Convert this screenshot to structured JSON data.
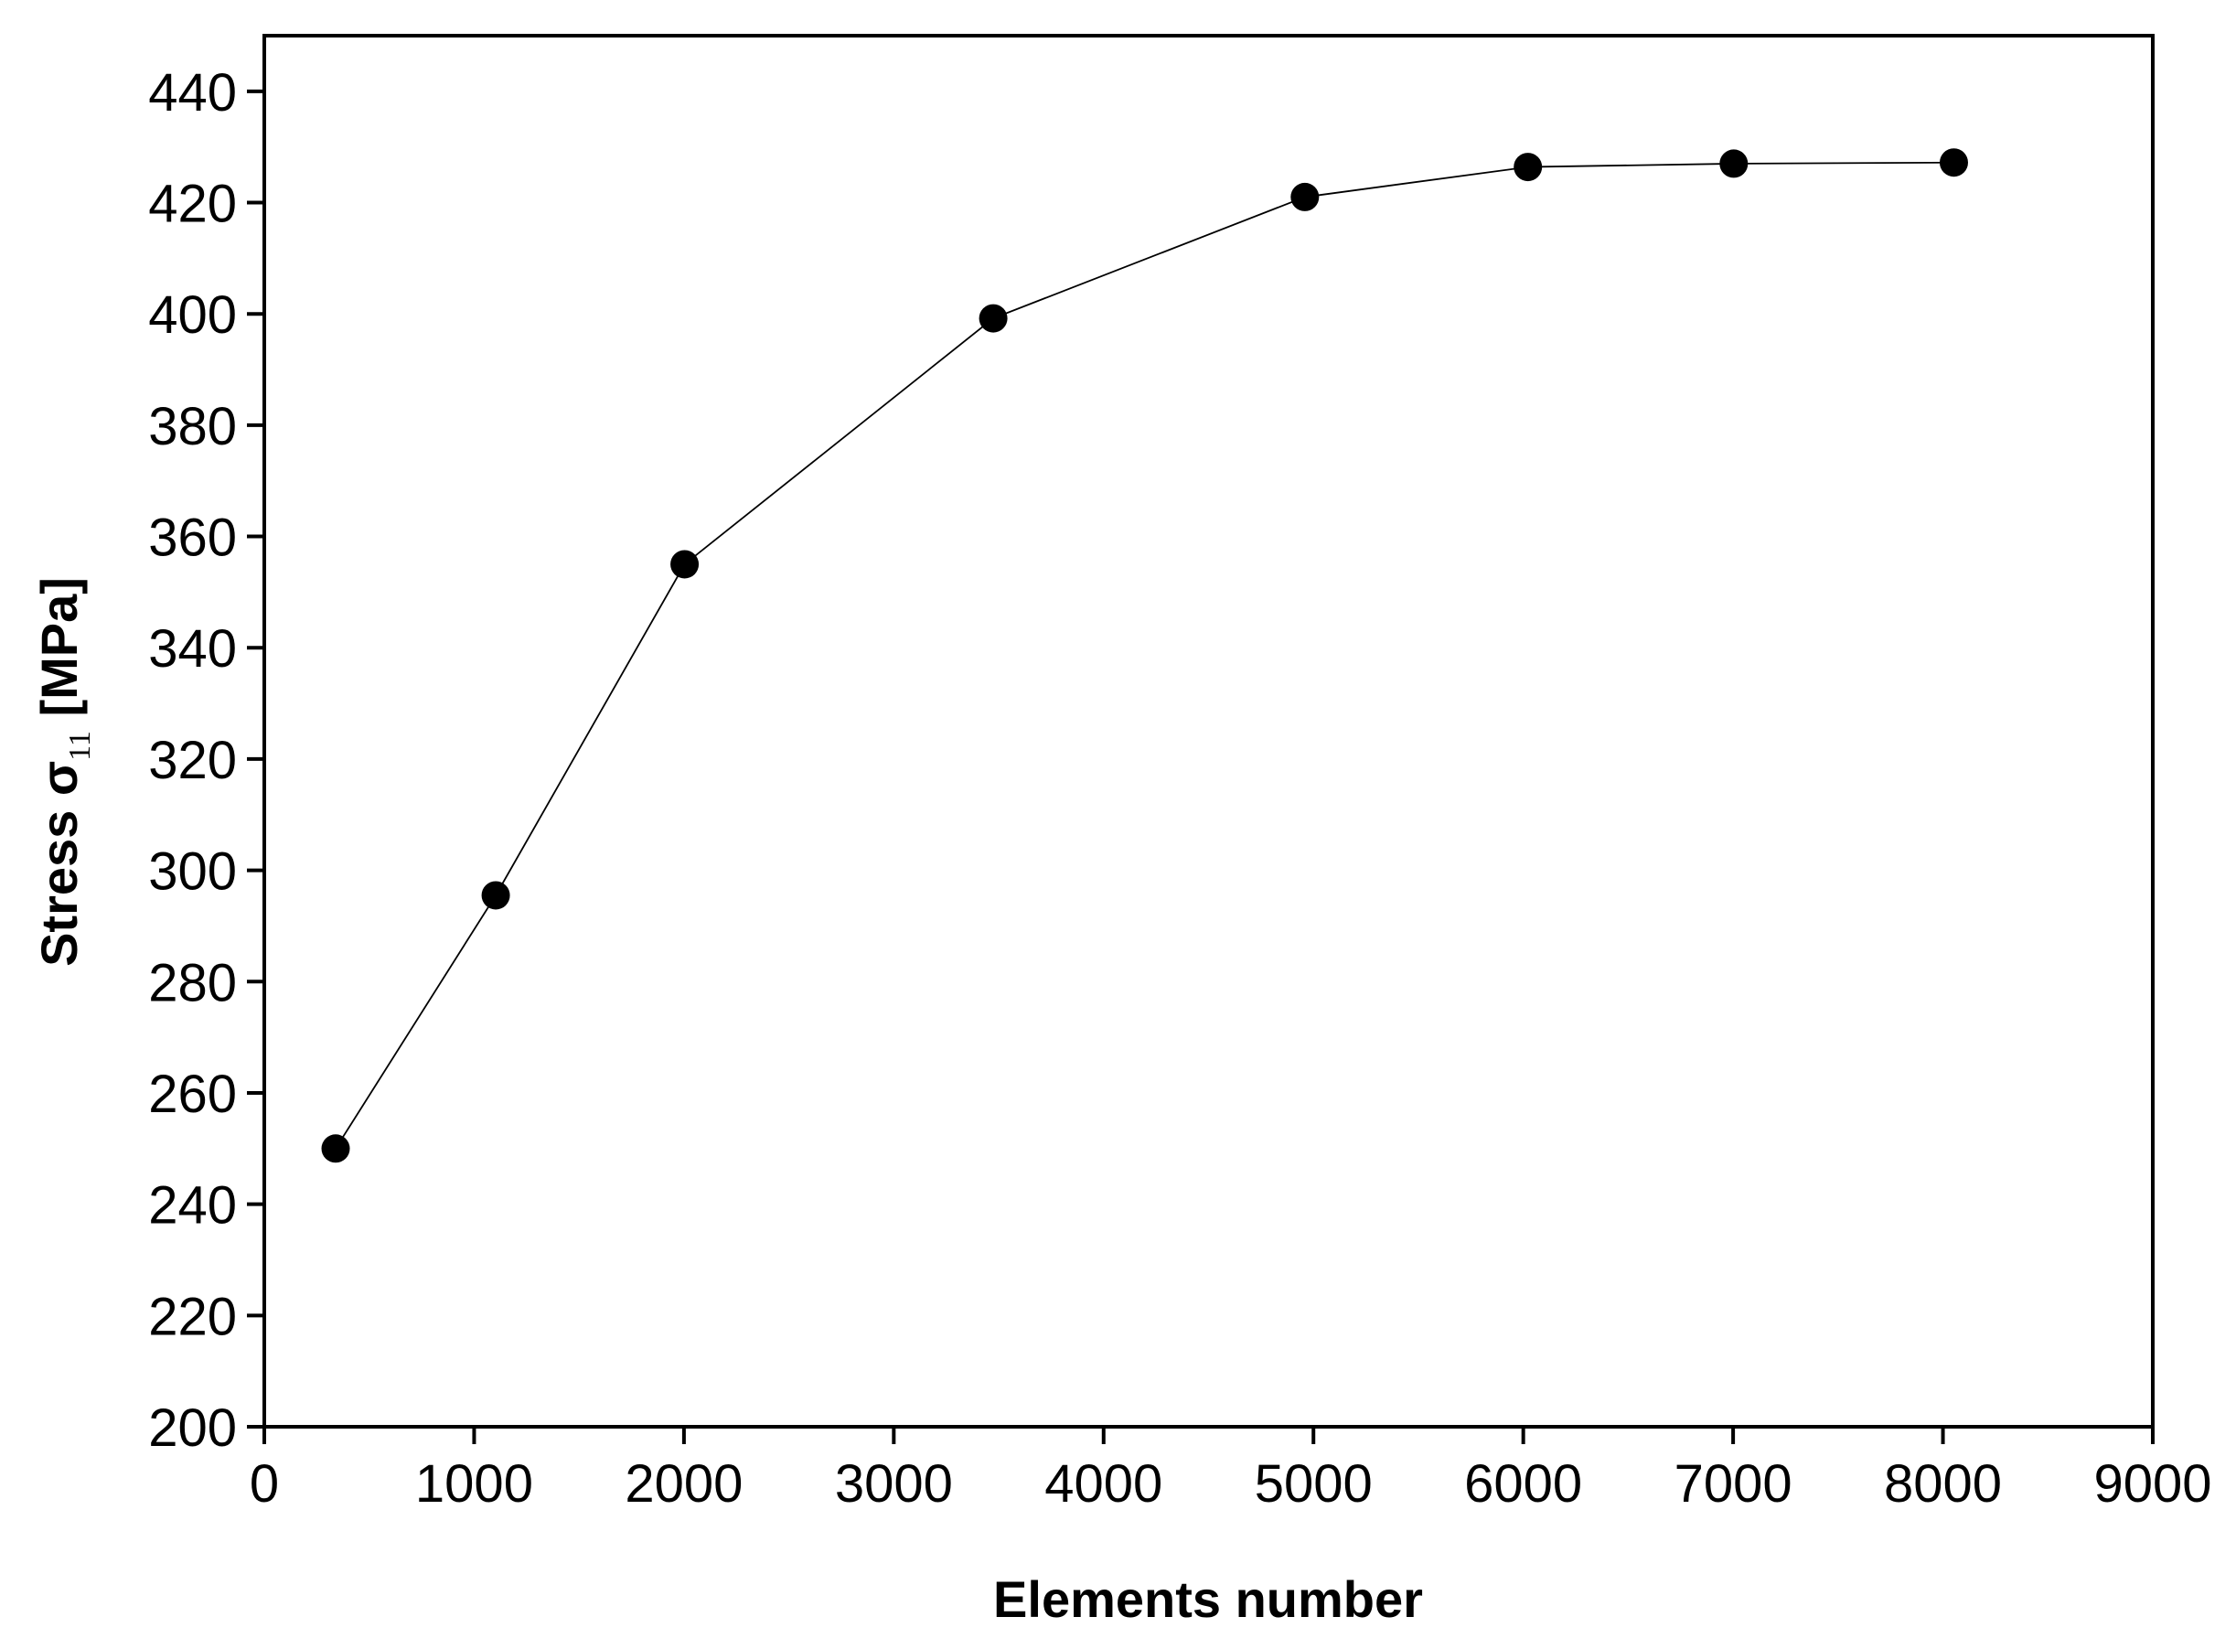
{
  "chart_data": {
    "type": "line",
    "x_label": "Elements number",
    "y_label": [
      "Stress σ",
      "11",
      " [MPa]"
    ],
    "series": [
      {
        "color": "#000000",
        "x": [
          340,
          1103,
          2003,
          3474,
          4959,
          6022,
          7003,
          8052
        ],
        "values": [
          250,
          295.5,
          355,
          399.2,
          421,
          426.4,
          427,
          427.2
        ]
      }
    ],
    "xlim": [
      0,
      9000
    ],
    "xticks": [
      0,
      1000,
      2000,
      3000,
      4000,
      5000,
      6000,
      7000,
      8000,
      9000
    ],
    "ylim": [
      200,
      450
    ],
    "yticks": [
      200,
      220,
      240,
      260,
      280,
      300,
      320,
      340,
      360,
      380,
      400,
      420,
      440
    ],
    "grid": false
  }
}
